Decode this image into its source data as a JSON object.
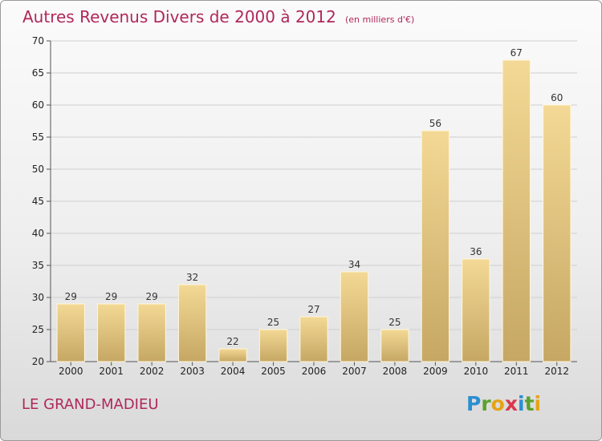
{
  "title": "Autres Revenus Divers de 2000 à 2012",
  "subtitle": "(en milliers d'€)",
  "commune": "LE GRAND-MADIEU",
  "logo_letters": [
    "P",
    "r",
    "o",
    "x",
    "i",
    "t",
    "i"
  ],
  "colors": {
    "title": "#b0285a",
    "bar_light": "#f3d995",
    "bar_dark": "#c6a764",
    "grid": "#cfcfcf"
  },
  "chart_data": {
    "type": "bar",
    "categories": [
      "2000",
      "2001",
      "2002",
      "2003",
      "2004",
      "2005",
      "2006",
      "2007",
      "2008",
      "2009",
      "2010",
      "2011",
      "2012"
    ],
    "values": [
      29,
      29,
      29,
      32,
      22,
      25,
      27,
      34,
      25,
      56,
      36,
      67,
      60
    ],
    "title": "Autres Revenus Divers de 2000 à 2012",
    "subtitle": "(en milliers d'€)",
    "xlabel": "",
    "ylabel": "",
    "ylim": [
      20,
      70
    ],
    "yticks": [
      20,
      25,
      30,
      35,
      40,
      45,
      50,
      55,
      60,
      65,
      70
    ],
    "grid": "horizontal",
    "legend": "none",
    "data_labels": true
  }
}
